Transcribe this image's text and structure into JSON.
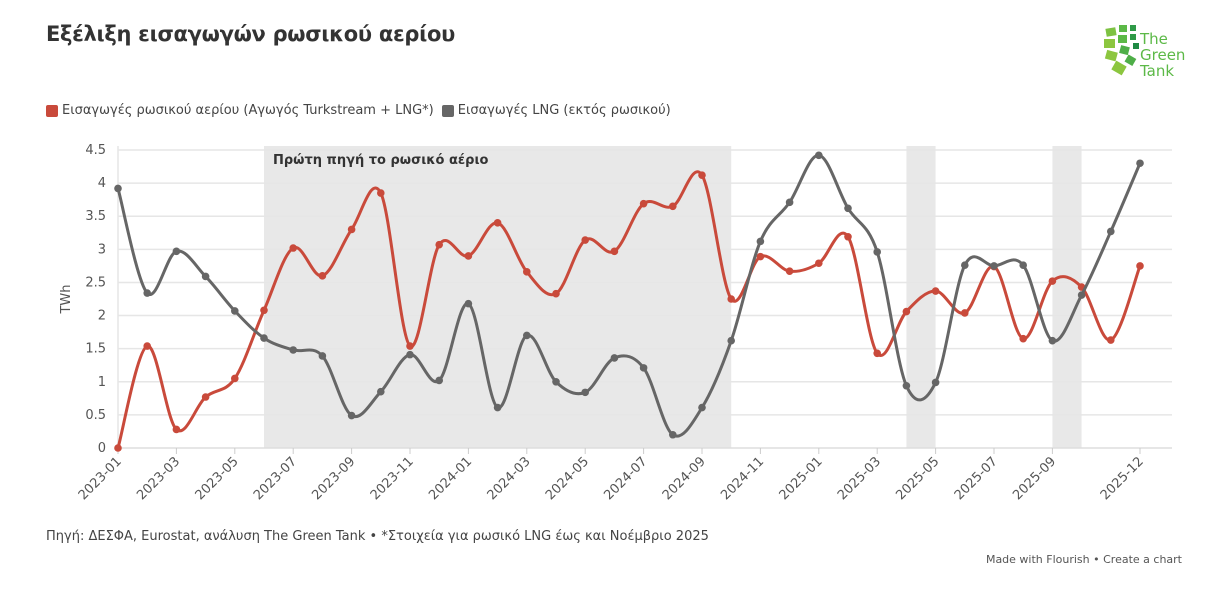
{
  "title": "Εξέλιξη εισαγωγών ρωσικού αερίου",
  "logo_text": "The Green Tank",
  "source": "Πηγή: ΔΕΣΦΑ, Eurostat, ανάλυση The Green Tank • *Στοιχεία για ρωσικό LNG έως και Νοέμβριο 2025",
  "credit": "Made with Flourish • Create a chart",
  "chart_data": {
    "type": "line",
    "title": "Εξέλιξη εισαγωγών ρωσικού αερίου",
    "xlabel": "",
    "ylabel": "TWh",
    "ylim": [
      0,
      4.5
    ],
    "yticks": [
      "0",
      "0.5",
      "1",
      "1.5",
      "2",
      "2.5",
      "3",
      "3.5",
      "4",
      "4.5"
    ],
    "grid": true,
    "legend_position": "top-left",
    "x": [
      "2023-01",
      "2023-02",
      "2023-03",
      "2023-04",
      "2023-05",
      "2023-06",
      "2023-07",
      "2023-08",
      "2023-09",
      "2023-10",
      "2023-11",
      "2023-12",
      "2024-01",
      "2024-02",
      "2024-03",
      "2024-04",
      "2024-05",
      "2024-06",
      "2024-07",
      "2024-08",
      "2024-09",
      "2024-10",
      "2024-11",
      "2024-12",
      "2025-01",
      "2025-02",
      "2025-03",
      "2025-04",
      "2025-05",
      "2025-06",
      "2025-07",
      "2025-08",
      "2025-09",
      "2025-10",
      "2025-11",
      "2025-12"
    ],
    "xtick_labels": [
      "2023-01",
      "2023-03",
      "2023-05",
      "2023-07",
      "2023-09",
      "2023-11",
      "2024-01",
      "2024-03",
      "2024-05",
      "2024-07",
      "2024-09",
      "2024-11",
      "2025-01",
      "2025-03",
      "2025-05",
      "2025-07",
      "2025-09",
      "2025-12"
    ],
    "series": [
      {
        "name": "Εισαγωγές ρωσικού αερίου (Αγωγός Turkstream + LNG*)",
        "color": "#c94a3b",
        "values": [
          0,
          1.54,
          0.28,
          0.77,
          1.05,
          2.08,
          3.02,
          2.6,
          3.3,
          3.85,
          1.54,
          3.07,
          2.9,
          3.4,
          2.66,
          2.33,
          3.14,
          2.97,
          3.69,
          3.65,
          4.12,
          2.25,
          2.89,
          2.67,
          2.79,
          3.19,
          1.43,
          2.06,
          2.37,
          2.04,
          2.74,
          1.65,
          2.52,
          2.43,
          1.63,
          2.75
        ]
      },
      {
        "name": "Εισαγωγές LNG (εκτός ρωσικού)",
        "color": "#666666",
        "values": [
          3.92,
          2.34,
          2.97,
          2.59,
          2.07,
          1.66,
          1.48,
          1.39,
          0.49,
          0.85,
          1.41,
          1.02,
          2.18,
          0.61,
          1.7,
          1.0,
          0.84,
          1.36,
          1.21,
          0.2,
          0.61,
          1.62,
          3.12,
          3.71,
          4.42,
          3.62,
          2.96,
          0.94,
          0.99,
          2.76,
          2.75,
          2.76,
          1.62,
          2.31,
          3.27,
          4.3
        ]
      }
    ],
    "shaded_ranges": [
      {
        "from": "2023-06",
        "to": "2024-10",
        "label": "Πρώτη πηγή το ρωσικό αέριο"
      },
      {
        "from": "2025-04",
        "to": "2025-05",
        "label": ""
      },
      {
        "from": "2025-09",
        "to": "2025-10",
        "label": ""
      }
    ]
  }
}
